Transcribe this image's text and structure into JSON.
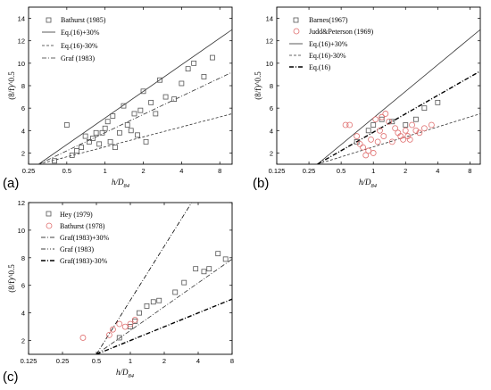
{
  "panels": [
    {
      "id": "a",
      "panel_label": "(a)",
      "ylabel": "(8/f)^0.5",
      "xlabel_main": "h/D",
      "xlabel_sub": "84",
      "x_ticks": [
        "0.25",
        "0.5",
        "1",
        "2",
        "4",
        "8"
      ],
      "y_ticks": [
        "2",
        "4",
        "6",
        "8",
        "10",
        "12",
        "14"
      ],
      "legend": [
        {
          "text": "Bathurst (1985)",
          "marker": "square",
          "color": "#555555"
        },
        {
          "text": "Eq.(16)+30%",
          "line": "solid"
        },
        {
          "text": "Eq.(16)-30%",
          "line": "dashed"
        },
        {
          "text": "Graf (1983)",
          "line": "dashdot"
        }
      ]
    },
    {
      "id": "b",
      "panel_label": "(b)",
      "ylabel": "(8/f)^0.5",
      "xlabel_main": "h/D",
      "xlabel_sub": "84",
      "x_ticks": [
        "0.125",
        "0.25",
        "0.5",
        "1",
        "2",
        "4",
        "8"
      ],
      "y_ticks": [
        "2",
        "4",
        "6",
        "8",
        "10",
        "12",
        "14"
      ],
      "legend": [
        {
          "text": "Barnes(1967)",
          "marker": "square",
          "color": "#555555"
        },
        {
          "text": "Judd&Peterson (1969)",
          "marker": "circle",
          "color": "#e07070"
        },
        {
          "text": "Eq.(16)+30%",
          "line": "solid"
        },
        {
          "text": "Eq.(16)-30%",
          "line": "dashed"
        },
        {
          "text": "Eq.(16)",
          "line": "dashdot_bold"
        }
      ]
    },
    {
      "id": "c",
      "panel_label": "(c)",
      "ylabel": "(8/f)^0.5",
      "xlabel_main": "h/D",
      "xlabel_sub": "84",
      "x_ticks": [
        "0.125",
        "0.25",
        "0.5",
        "1",
        "2",
        "4",
        "8"
      ],
      "y_ticks": [
        "2",
        "4",
        "6",
        "8",
        "10",
        "12"
      ],
      "legend": [
        {
          "text": "Hey (1979)",
          "marker": "square",
          "color": "#555555"
        },
        {
          "text": "Bathurst (1978)",
          "marker": "circle",
          "color": "#e07070"
        },
        {
          "text": "Graf(1983)+30%",
          "line": "dashdot"
        },
        {
          "text": "Graf (1983)",
          "line": "dashdotdot"
        },
        {
          "text": "Graf(1983)-30%",
          "line": "dashdot_bold"
        }
      ]
    }
  ],
  "chart_data": [
    {
      "type": "scatter",
      "panel": "a",
      "x_scale": "log2",
      "xlabel": "h/D84",
      "ylabel": "(8/f)^0.5",
      "xlim": [
        0.25,
        10
      ],
      "ylim": [
        1,
        15
      ],
      "series": [
        {
          "name": "Bathurst (1985)",
          "marker": "square",
          "points": [
            [
              0.4,
              1.3
            ],
            [
              0.5,
              4.5
            ],
            [
              0.55,
              1.8
            ],
            [
              0.6,
              2.2
            ],
            [
              0.65,
              2.5
            ],
            [
              0.7,
              3.5
            ],
            [
              0.75,
              3.0
            ],
            [
              0.8,
              3.3
            ],
            [
              0.85,
              3.8
            ],
            [
              0.9,
              2.8
            ],
            [
              0.95,
              3.8
            ],
            [
              1.0,
              4.2
            ],
            [
              1.05,
              4.8
            ],
            [
              1.1,
              3.0
            ],
            [
              1.15,
              5.3
            ],
            [
              1.2,
              2.5
            ],
            [
              1.3,
              3.8
            ],
            [
              1.4,
              6.2
            ],
            [
              1.5,
              4.5
            ],
            [
              1.6,
              4.0
            ],
            [
              1.7,
              5.5
            ],
            [
              1.8,
              3.6
            ],
            [
              1.9,
              5.8
            ],
            [
              2.0,
              7.5
            ],
            [
              2.1,
              3.0
            ],
            [
              2.3,
              6.5
            ],
            [
              2.5,
              5.5
            ],
            [
              2.7,
              8.5
            ],
            [
              3.0,
              7.0
            ],
            [
              3.5,
              6.8
            ],
            [
              4.0,
              8.2
            ],
            [
              4.5,
              9.5
            ],
            [
              5.0,
              10.0
            ],
            [
              6.0,
              8.8
            ],
            [
              7.0,
              10.5
            ]
          ]
        },
        {
          "name": "Eq.(16)+30%",
          "line": [
            [
              0.3,
              1.0
            ],
            [
              10,
              13.0
            ]
          ]
        },
        {
          "name": "Eq.(16)-30%",
          "line": [
            [
              0.3,
              1.0
            ],
            [
              10,
              5.5
            ]
          ]
        },
        {
          "name": "Graf (1983)",
          "line": [
            [
              0.3,
              1.0
            ],
            [
              10,
              9.2
            ]
          ]
        }
      ]
    },
    {
      "type": "scatter",
      "panel": "b",
      "x_scale": "log2",
      "xlabel": "h/D84",
      "ylabel": "(8/f)^0.5",
      "xlim": [
        0.125,
        10
      ],
      "ylim": [
        1,
        15
      ],
      "series": [
        {
          "name": "Barnes(1967)",
          "marker": "square",
          "points": [
            [
              0.7,
              3.0
            ],
            [
              0.9,
              4.0
            ],
            [
              1.0,
              4.5
            ],
            [
              1.2,
              5.0
            ],
            [
              1.5,
              4.8
            ],
            [
              2.0,
              4.5
            ],
            [
              2.5,
              5.0
            ],
            [
              3.0,
              6.0
            ],
            [
              4.0,
              6.5
            ]
          ]
        },
        {
          "name": "Judd&Peterson (1969)",
          "marker": "circle",
          "points": [
            [
              0.55,
              4.5
            ],
            [
              0.6,
              4.5
            ],
            [
              0.7,
              3.5
            ],
            [
              0.75,
              2.8
            ],
            [
              0.8,
              2.5
            ],
            [
              0.85,
              1.8
            ],
            [
              0.9,
              2.2
            ],
            [
              0.95,
              3.2
            ],
            [
              1.0,
              2.0
            ],
            [
              1.05,
              5.0
            ],
            [
              1.1,
              3.0
            ],
            [
              1.15,
              4.0
            ],
            [
              1.2,
              5.2
            ],
            [
              1.25,
              3.5
            ],
            [
              1.3,
              5.5
            ],
            [
              1.4,
              4.8
            ],
            [
              1.5,
              3.0
            ],
            [
              1.6,
              4.2
            ],
            [
              1.7,
              3.8
            ],
            [
              1.8,
              3.5
            ],
            [
              1.9,
              3.2
            ],
            [
              2.0,
              4.0
            ],
            [
              2.1,
              3.5
            ],
            [
              2.2,
              3.2
            ],
            [
              2.3,
              4.5
            ],
            [
              2.5,
              4.0
            ],
            [
              2.7,
              3.8
            ],
            [
              3.0,
              4.2
            ],
            [
              3.5,
              4.5
            ]
          ]
        },
        {
          "name": "Eq.(16)+30%",
          "line": [
            [
              0.3,
              1.0
            ],
            [
              10,
              13.0
            ]
          ]
        },
        {
          "name": "Eq.(16)-30%",
          "line": [
            [
              0.3,
              1.0
            ],
            [
              10,
              5.5
            ]
          ]
        },
        {
          "name": "Eq.(16)",
          "line": [
            [
              0.3,
              1.0
            ],
            [
              10,
              9.3
            ]
          ]
        }
      ]
    },
    {
      "type": "scatter",
      "panel": "c",
      "x_scale": "log2",
      "xlabel": "h/D84",
      "ylabel": "(8/f)^0.5",
      "xlim": [
        0.125,
        8
      ],
      "ylim": [
        1,
        12
      ],
      "series": [
        {
          "name": "Hey (1979)",
          "marker": "square",
          "points": [
            [
              0.8,
              2.2
            ],
            [
              1.0,
              3.0
            ],
            [
              1.1,
              3.4
            ],
            [
              1.2,
              4.0
            ],
            [
              1.4,
              4.5
            ],
            [
              1.6,
              4.8
            ],
            [
              1.8,
              4.9
            ],
            [
              2.5,
              5.5
            ],
            [
              3.0,
              6.2
            ],
            [
              3.8,
              7.2
            ],
            [
              4.5,
              7.0
            ],
            [
              5.0,
              7.2
            ],
            [
              6.0,
              8.3
            ],
            [
              7.0,
              7.9
            ]
          ]
        },
        {
          "name": "Bathurst (1978)",
          "marker": "circle",
          "points": [
            [
              0.38,
              2.2
            ],
            [
              0.65,
              2.4
            ],
            [
              0.7,
              2.8
            ],
            [
              0.8,
              3.2
            ],
            [
              0.9,
              3.0
            ],
            [
              1.0,
              3.2
            ],
            [
              1.1,
              3.5
            ]
          ]
        },
        {
          "name": "Graf(1983)+30%",
          "line": [
            [
              0.5,
              1.0
            ],
            [
              3.5,
              12.0
            ]
          ]
        },
        {
          "name": "Graf (1983)",
          "line": [
            [
              0.5,
              1.0
            ],
            [
              8,
              7.9
            ]
          ]
        },
        {
          "name": "Graf(1983)-30%",
          "line": [
            [
              0.5,
              1.0
            ],
            [
              8,
              5.0
            ]
          ]
        }
      ]
    }
  ]
}
